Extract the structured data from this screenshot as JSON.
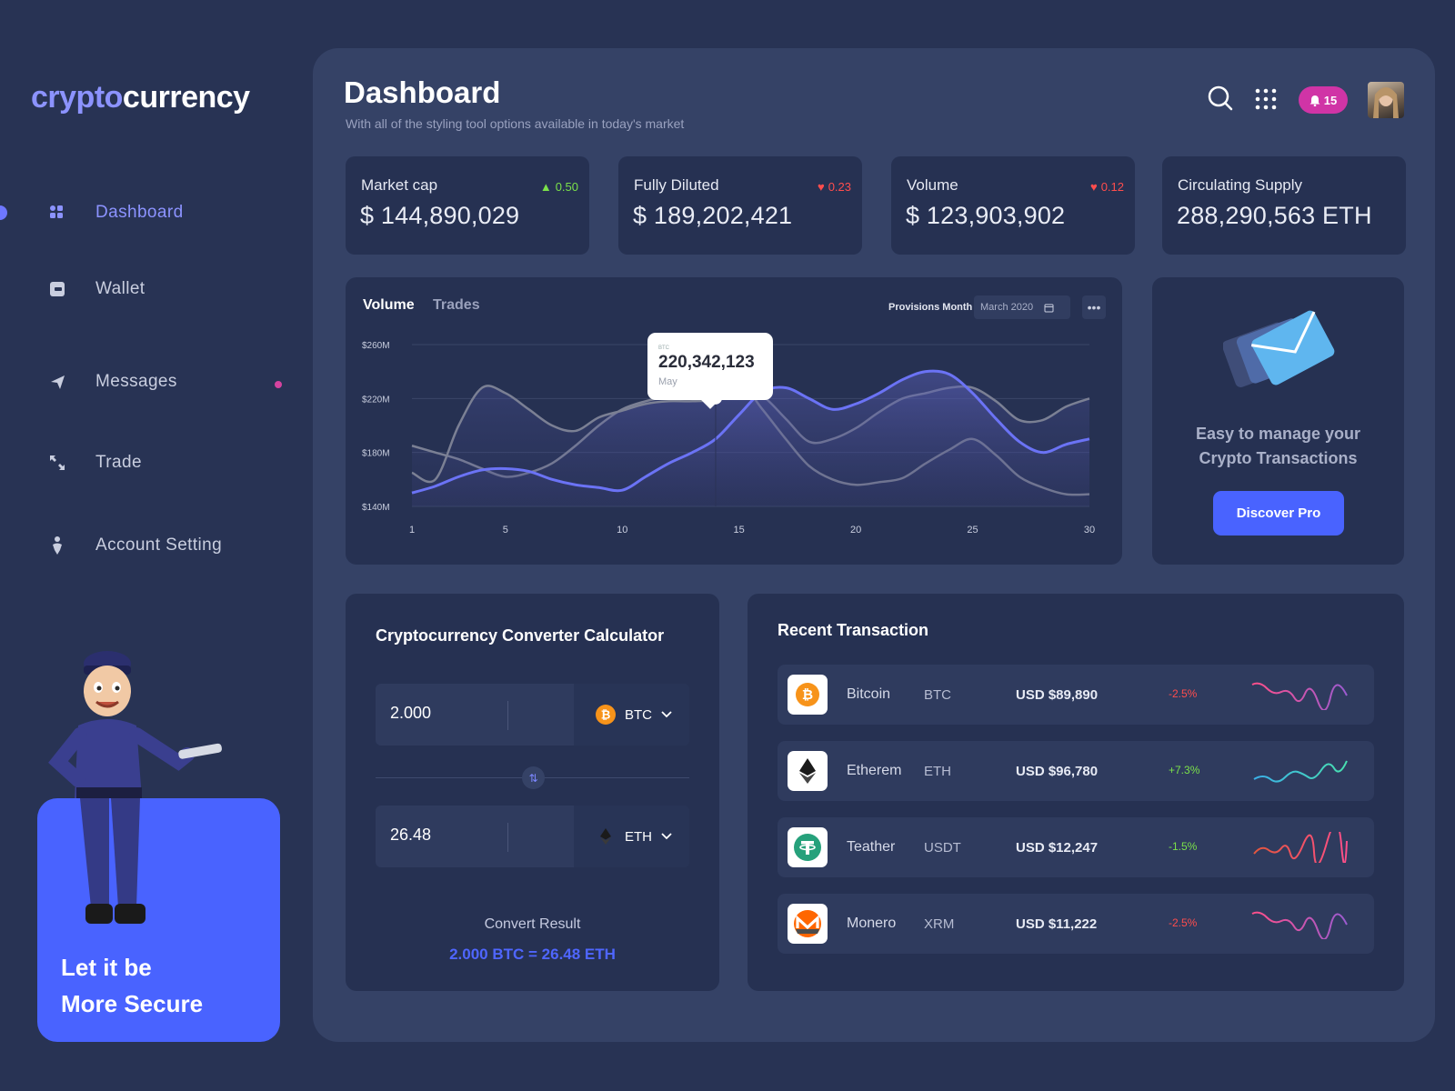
{
  "app": {
    "logo_part1": "crypto",
    "logo_part2": "currency",
    "accent": "#8c93ff",
    "primary": "#4963ff"
  },
  "sidebar": {
    "items": [
      {
        "label": "Dashboard",
        "icon": "dashboard-icon",
        "active": true
      },
      {
        "label": "Wallet",
        "icon": "wallet-icon"
      },
      {
        "label": "Messages",
        "icon": "send-icon",
        "has_dot": true
      },
      {
        "label": "Trade",
        "icon": "trade-arrows-icon"
      },
      {
        "label": "Account Setting",
        "icon": "user-icon"
      }
    ],
    "promo_line1": "Let it be",
    "promo_line2": "More Secure"
  },
  "header": {
    "title": "Dashboard",
    "subtitle": "With all of the styling tool options available in today's market",
    "notification_count": "15"
  },
  "stats": [
    {
      "label": "Market cap",
      "value": "$ 144,890,029",
      "change": "0.50",
      "direction": "up"
    },
    {
      "label": "Fully Diluted",
      "value": "$ 189,202,421",
      "change": "0.23",
      "direction": "down"
    },
    {
      "label": "Volume",
      "value": "$ 123,903,902",
      "change": "0.12",
      "direction": "down"
    },
    {
      "label": "Circulating Supply",
      "value": "288,290,563 ETH",
      "change": "",
      "direction": ""
    }
  ],
  "chart": {
    "tabs": [
      "Volume",
      "Trades"
    ],
    "filter_label": "Provisions Month",
    "date_value": "March 2020",
    "tooltip_small": "BTC",
    "tooltip_value": "220,342,123",
    "tooltip_sub": "May"
  },
  "chart_data": {
    "type": "area",
    "x": [
      1,
      2,
      3,
      4,
      5,
      6,
      7,
      8,
      9,
      10,
      11,
      12,
      13,
      14,
      15,
      16,
      17,
      18,
      19,
      20,
      21,
      22,
      23,
      24,
      25,
      26,
      27,
      28,
      29,
      30
    ],
    "ylim": [
      140,
      260
    ],
    "y_ticks": [
      "$260M",
      "$220M",
      "$180M",
      "$140M"
    ],
    "x_ticks": [
      "1",
      "5",
      "10",
      "15",
      "20",
      "25",
      "30"
    ],
    "series": [
      {
        "values": [
          150,
          155,
          162,
          167,
          168,
          166,
          160,
          156,
          154,
          152,
          162,
          172,
          180,
          190,
          208,
          225,
          228,
          220,
          212,
          216,
          224,
          234,
          240,
          238,
          224,
          205,
          188,
          180,
          186,
          190
        ],
        "color": "#6b73f5"
      },
      {
        "values": [
          165,
          160,
          200,
          228,
          224,
          212,
          200,
          196,
          206,
          211,
          216,
          218,
          218,
          220,
          232,
          212,
          190,
          170,
          160,
          156,
          158,
          161,
          172,
          182,
          190,
          178,
          162,
          154,
          149,
          149
        ],
        "color": "#7b8094"
      },
      {
        "values": [
          185,
          180,
          175,
          168,
          162,
          165,
          172,
          185,
          200,
          212,
          218,
          222,
          226,
          226,
          228,
          222,
          205,
          188,
          190,
          198,
          210,
          220,
          224,
          228,
          228,
          218,
          204,
          204,
          214,
          220
        ],
        "color": "#7b8094"
      }
    ],
    "highlight": {
      "x": 14,
      "value": 220.342123
    }
  },
  "promo_card": {
    "line1": "Easy to manage your",
    "line2": "Crypto Transactions",
    "button": "Discover Pro",
    "icon": "envelope-icon"
  },
  "converter": {
    "title": "Cryptocurrency Converter Calculator",
    "from_amount": "2.000",
    "from_currency": "BTC",
    "to_amount": "26.48",
    "to_currency": "ETH",
    "result_label": "Convert Result",
    "result_value": "2.000 BTC = 26.48 ETH"
  },
  "transactions": {
    "title": "Recent Transaction",
    "rows": [
      {
        "name": "Bitcoin",
        "symbol": "BTC",
        "usd": "USD $89,890",
        "change": "-2.5%",
        "trend": "down",
        "icon": "bitcoin-icon"
      },
      {
        "name": "Etherem",
        "symbol": "ETH",
        "usd": "USD $96,780",
        "change": "+7.3%",
        "trend": "up",
        "icon": "ethereum-icon"
      },
      {
        "name": "Teather",
        "symbol": "USDT",
        "usd": "USD $12,247",
        "change": "-1.5%",
        "trend": "down",
        "icon": "tether-icon"
      },
      {
        "name": "Monero",
        "symbol": "XRM",
        "usd": "USD $11,222",
        "change": "-2.5%",
        "trend": "down",
        "icon": "monero-icon"
      }
    ]
  }
}
